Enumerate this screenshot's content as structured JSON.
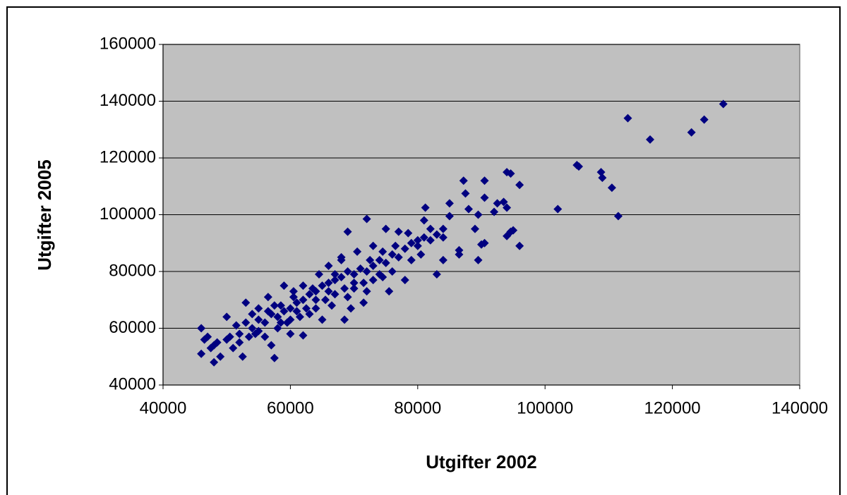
{
  "chart_data": {
    "type": "scatter",
    "x_label": "Utgifter 2002",
    "y_label": "Utgifter 2005",
    "x": [
      113000,
      116500,
      123000,
      125000,
      128000,
      105000,
      105300,
      102000,
      108800,
      109000,
      110500,
      111500,
      94000,
      94600,
      96000,
      96000,
      94000,
      94600,
      95000,
      94000,
      93500,
      92500,
      92000,
      90500,
      90500,
      89500,
      89500,
      90000,
      90500,
      89000,
      88000,
      87500,
      87200,
      86500,
      86500,
      85000,
      85000,
      84000,
      84000,
      83000,
      81200,
      81000,
      80000,
      79000,
      78000,
      78500,
      77000,
      76500,
      75500,
      75000,
      74500,
      74000,
      73000,
      72000,
      72500,
      71500,
      70500,
      69500,
      69000,
      68500,
      68000,
      67000,
      66000,
      65000,
      64000,
      63500,
      62000,
      61500,
      60000,
      60500,
      59000,
      58500,
      57500,
      57000,
      56500,
      55000,
      54500,
      53000,
      52500,
      52000,
      51500,
      51000,
      50500,
      50000,
      49000,
      48500,
      48000,
      47500,
      47000,
      46000,
      46000,
      46500,
      53000,
      54000,
      55000,
      56000,
      57000,
      58000,
      59000,
      60000,
      61000,
      62000,
      63000,
      64000,
      65000,
      66000,
      67000,
      68000,
      69000,
      70000,
      71000,
      72000,
      73000,
      74000,
      75000,
      76000,
      77000,
      78000,
      79000,
      80000,
      81000,
      82000,
      83000,
      84000,
      55000,
      56500,
      58000,
      59500,
      61000,
      62500,
      64000,
      65500,
      67000,
      68500,
      70000,
      71500,
      73000,
      74500,
      76000,
      54000,
      52000,
      50000,
      57500,
      60000,
      63000,
      66500,
      69000,
      72000,
      64500,
      66000,
      68000,
      70000,
      62000,
      60500,
      48000,
      53500,
      56000,
      58500,
      82000,
      80500
    ],
    "values": [
      134000,
      126500,
      129000,
      133500,
      139000,
      117500,
      117000,
      102000,
      115000,
      113000,
      109500,
      99500,
      115000,
      114500,
      110500,
      89000,
      92500,
      94000,
      94500,
      102500,
      104500,
      104000,
      101000,
      112000,
      106000,
      100000,
      84000,
      89500,
      90000,
      95000,
      102000,
      107500,
      112000,
      86000,
      87500,
      104000,
      99500,
      95000,
      84000,
      79000,
      102500,
      98000,
      91000,
      84000,
      77000,
      93500,
      94000,
      89000,
      73000,
      95000,
      87000,
      79000,
      89000,
      98500,
      84000,
      69000,
      87000,
      67000,
      94000,
      63000,
      84000,
      79000,
      73000,
      63000,
      70000,
      74000,
      57500,
      64000,
      58000,
      71000,
      75000,
      68000,
      49500,
      54000,
      71000,
      67000,
      58000,
      69000,
      50000,
      55000,
      61000,
      53000,
      57000,
      64000,
      50000,
      55000,
      48000,
      53000,
      57000,
      60000,
      51000,
      56000,
      62000,
      60000,
      63000,
      62000,
      65000,
      64000,
      66000,
      67000,
      69000,
      70000,
      72000,
      73000,
      75000,
      76000,
      77000,
      78000,
      80000,
      79000,
      81000,
      80000,
      82000,
      84000,
      83000,
      86000,
      85000,
      88000,
      90000,
      89000,
      92000,
      91000,
      93000,
      92000,
      59000,
      66000,
      60000,
      62000,
      66000,
      67000,
      67000,
      70000,
      72000,
      74000,
      74000,
      76000,
      77000,
      78000,
      80000,
      65000,
      58000,
      56000,
      68000,
      63000,
      65000,
      68000,
      71000,
      73000,
      79000,
      82000,
      85000,
      76000,
      75000,
      73000,
      54000,
      57000,
      57000,
      62000,
      95000,
      86000
    ],
    "color": "#000080",
    "xlim": [
      40000,
      140000
    ],
    "xticks": [
      40000,
      60000,
      80000,
      100000,
      120000,
      140000
    ],
    "ylim": [
      40000,
      160000
    ],
    "yticks": [
      40000,
      60000,
      80000,
      100000,
      120000,
      140000,
      160000
    ],
    "grid": true
  }
}
